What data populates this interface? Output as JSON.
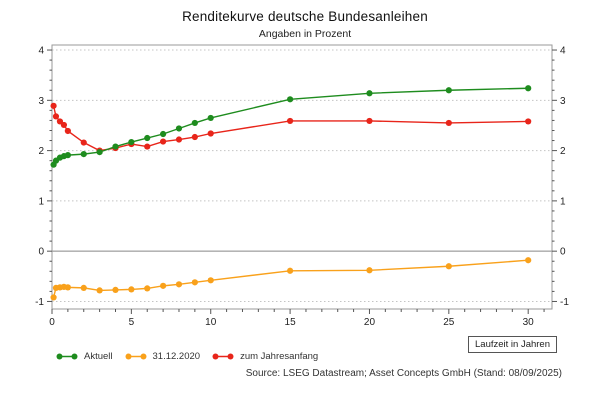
{
  "chart_data": {
    "type": "line",
    "title": "Renditekurve deutsche Bundesanleihen",
    "subtitle": "Angaben in Prozent",
    "xlabel": "Laufzeit in Jahren",
    "source": "Source: LSEG Datastream; Asset Concepts GmbH  (Stand: 08/09/2025)",
    "xlim": [
      0,
      31.5
    ],
    "ylim": [
      -1.15,
      4.1
    ],
    "xticks": [
      0,
      5,
      10,
      15,
      20,
      25,
      30
    ],
    "yticks": [
      -1,
      0,
      1,
      2,
      3,
      4
    ],
    "grid": "dashed horizontal gridlines at integers, solid zero line",
    "legend_position": "bottom-left",
    "x": [
      0.1,
      0.25,
      0.5,
      0.75,
      1,
      2,
      3,
      4,
      5,
      6,
      7,
      8,
      9,
      10,
      15,
      20,
      25,
      30
    ],
    "series": [
      {
        "name": "31.12.2020",
        "color": "#f9a11b",
        "values": [
          -0.92,
          -0.73,
          -0.72,
          -0.71,
          -0.72,
          -0.73,
          -0.78,
          -0.77,
          -0.76,
          -0.74,
          -0.69,
          -0.66,
          -0.62,
          -0.58,
          -0.39,
          -0.38,
          -0.3,
          -0.18
        ]
      },
      {
        "name": "zum Jahresanfang",
        "color": "#e8251a",
        "values": [
          2.89,
          2.68,
          2.58,
          2.51,
          2.39,
          2.16,
          2.0,
          2.05,
          2.13,
          2.08,
          2.18,
          2.22,
          2.27,
          2.34,
          2.59,
          2.59,
          2.55,
          2.58
        ]
      },
      {
        "name": "Aktuell",
        "color": "#1e8c1e",
        "values": [
          1.72,
          1.8,
          1.86,
          1.89,
          1.91,
          1.93,
          1.97,
          2.08,
          2.17,
          2.25,
          2.33,
          2.44,
          2.55,
          2.65,
          3.02,
          3.14,
          3.2,
          3.24
        ]
      }
    ],
    "colors": {
      "gridline": "#c4c4c4",
      "zero_line": "#888888",
      "frame": "#9a9a9a",
      "tick": "#555555",
      "tick_label": "#222222"
    }
  }
}
